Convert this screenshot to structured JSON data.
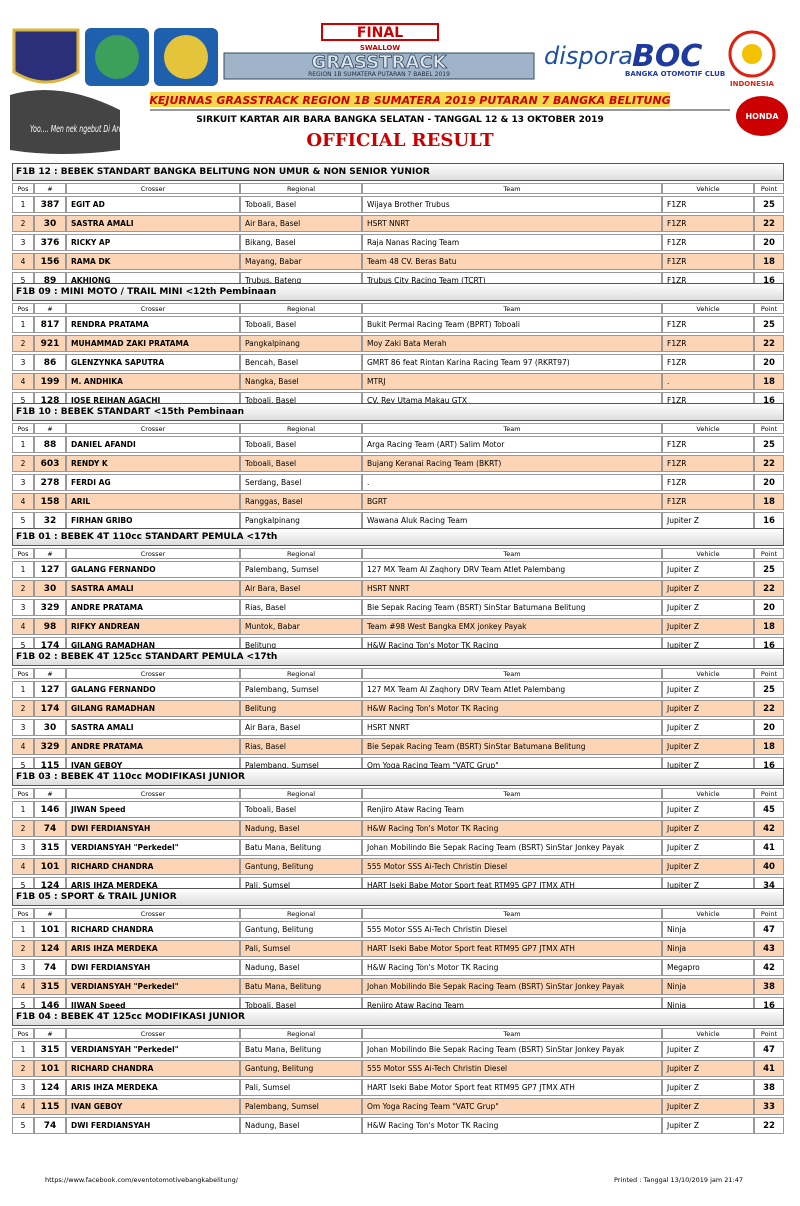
{
  "header": {
    "final": "FINAL",
    "sponsor": "SWALLOW",
    "event_logo": "GRASSTRACK",
    "event_logo_sub": "REGION 1B SUMATERA PUTARAN 7 BABEL 2019",
    "dispora": "dispora",
    "club_logo": "BOC",
    "club_name": "BANGKA OTOMOTIF CLUB",
    "country": "INDONESIA",
    "brand": "HONDA",
    "slogan": "Yoo.... Men nek ngebut Di Arena bae...",
    "title": "KEJURNAS GRASSTRACK REGION 1B SUMATERA 2019 PUTARAN 7 BANGKA BELITUNG",
    "venue": "SIRKUIT KARTAR AIR BARA BANGKA SELATAN  - TANGGAL 12 & 13 OKTOBER 2019",
    "result": "OFFICIAL RESULT"
  },
  "columns": [
    "Pos",
    "#",
    "Crosser",
    "Regional",
    "Team",
    "Vehicle",
    "Point"
  ],
  "sections": [
    {
      "title": "F1B 12  : BEBEK STANDART BANGKA BELITUNG NON UMUR & NON SENIOR YUNIOR",
      "rows": [
        [
          1,
          387,
          "EGIT AD",
          "Toboali, Basel",
          "Wijaya Brother Trubus",
          "F1ZR",
          25
        ],
        [
          2,
          30,
          "SASTRA AMALI",
          "Air Bara, Basel",
          "HSRT NNRT",
          "F1ZR",
          22
        ],
        [
          3,
          376,
          "RICKY AP",
          "Bikang, Basel",
          "Raja Nanas Racing Team",
          "F1ZR",
          20
        ],
        [
          4,
          156,
          "RAMA DK",
          "Mayang, Babar",
          "Team 48 CV. Beras Batu",
          "F1ZR",
          18
        ],
        [
          5,
          89,
          "AKHIONG",
          "Trubus, Bateng",
          "Trubus City Racing Team (TCRT)",
          "F1ZR",
          16
        ]
      ]
    },
    {
      "title": "F1B 09  : MINI MOTO / TRAIL MINI <12th Pembinaan",
      "rows": [
        [
          1,
          817,
          "RENDRA PRATAMA",
          "Toboali, Basel",
          "Bukit Permai Racing Team (BPRT) Toboali",
          "F1ZR",
          25
        ],
        [
          2,
          921,
          "MUHAMMAD ZAKI PRATAMA",
          "Pangkalpinang",
          "Moy Zaki Bata Merah",
          "F1ZR",
          22
        ],
        [
          3,
          86,
          "GLENZYNKA SAPUTRA",
          "Bencah, Basel",
          "GMRT 86 feat Rintan Karina Racing Team 97 (RKRT97)",
          "F1ZR",
          20
        ],
        [
          4,
          199,
          "M. ANDHIKA",
          "Nangka, Basel",
          "MTRJ",
          ".",
          18
        ],
        [
          5,
          128,
          "JOSE REIHAN AGACHI",
          "Toboali, Basel",
          "CV. Rey Utama Makau GTX",
          "F1ZR",
          16
        ]
      ]
    },
    {
      "title": "F1B 10  : BEBEK STANDART <15th Pembinaan",
      "rows": [
        [
          1,
          88,
          "DANIEL AFANDI",
          "Toboali, Basel",
          "Arga Racing Team (ART) Salim Motor",
          "F1ZR",
          25
        ],
        [
          2,
          603,
          "RENDY K",
          "Toboali, Basel",
          "Bujang Keranai Racing Team (BKRT)",
          "F1ZR",
          22
        ],
        [
          3,
          278,
          "FERDI AG",
          "Serdang, Basel",
          ".",
          "F1ZR",
          20
        ],
        [
          4,
          158,
          "ARIL",
          "Ranggas, Basel",
          "BGRT",
          "F1ZR",
          18
        ],
        [
          5,
          32,
          "FIRHAN GRIBO",
          "Pangkalpinang",
          "Wawana Aluk Racing Team",
          "Jupiter Z",
          16
        ]
      ]
    },
    {
      "title": "F1B 01  : BEBEK 4T 110cc STANDART PEMULA <17th",
      "rows": [
        [
          1,
          127,
          "GALANG FERNANDO",
          "Palembang, Sumsel",
          "127 MX Team Al Zaqhory DRV Team Atlet Palembang",
          "Jupiter Z",
          25
        ],
        [
          2,
          30,
          "SASTRA AMALI",
          "Air Bara, Basel",
          "HSRT NNRT",
          "Jupiter Z",
          22
        ],
        [
          3,
          329,
          "ANDRE PRATAMA",
          "Rias, Basel",
          "Bie Sepak Racing Team (BSRT) SinStar Batumana Belitung",
          "Jupiter Z",
          20
        ],
        [
          4,
          98,
          "RIFKY ANDREAN",
          "Muntok, Babar",
          "Team #98 West Bangka EMX jonkey Payak",
          "Jupiter Z",
          18
        ],
        [
          5,
          174,
          "GILANG RAMADHAN",
          "Belitung",
          "H&W Racing Ton's Motor TK Racing",
          "Jupiter Z",
          16
        ]
      ]
    },
    {
      "title": "F1B 02  : BEBEK 4T 125cc STANDART PEMULA <17th",
      "rows": [
        [
          1,
          127,
          "GALANG FERNANDO",
          "Palembang, Sumsel",
          "127 MX Team Al Zaqhory DRV Team Atlet Palembang",
          "Jupiter Z",
          25
        ],
        [
          2,
          174,
          "GILANG RAMADHAN",
          "Belitung",
          "H&W Racing Ton's Motor TK Racing",
          "Jupiter Z",
          22
        ],
        [
          3,
          30,
          "SASTRA AMALI",
          "Air Bara, Basel",
          "HSRT NNRT",
          "Jupiter Z",
          20
        ],
        [
          4,
          329,
          "ANDRE PRATAMA",
          "Rias, Basel",
          "Bie Sepak Racing Team (BSRT) SinStar Batumana Belitung",
          "Jupiter Z",
          18
        ],
        [
          5,
          115,
          "IVAN GEBOY",
          "Palembang, Sumsel",
          "Om Yoga Racing Team \"VATC Grup\"",
          "Jupiter Z",
          16
        ]
      ]
    },
    {
      "title": "F1B 03  : BEBEK 4T 110cc MODIFIKASI JUNIOR",
      "rows": [
        [
          1,
          146,
          "JIWAN Speed",
          "Toboali, Basel",
          "Renjiro Ataw Racing Team",
          "Jupiter Z",
          45
        ],
        [
          2,
          74,
          "DWI FERDIANSYAH",
          "Nadung, Basel",
          "H&W Racing Ton's Motor TK Racing",
          "Jupiter Z",
          42
        ],
        [
          3,
          315,
          "VERDIANSYAH \"Perkedel\"",
          "Batu Mana, Belitung",
          "Johan Mobilindo Bie Sepak Racing Team (BSRT) SinStar Jonkey Payak",
          "Jupiter Z",
          41
        ],
        [
          4,
          101,
          "RICHARD CHANDRA",
          "Gantung, Belitung",
          "555 Motor SSS Ai-Tech Christin Diesel",
          "Jupiter Z",
          40
        ],
        [
          5,
          124,
          "ARIS IHZA MERDEKA",
          "Pali, Sumsel",
          "HART Iseki Babe Motor Sport feat RTM95 GP7 JTMX ATH",
          "Jupiter Z",
          34
        ]
      ]
    },
    {
      "title": "F1B 05  : SPORT & TRAIL JUNIOR",
      "rows": [
        [
          1,
          101,
          "RICHARD CHANDRA",
          "Gantung, Belitung",
          "555 Motor SSS Ai-Tech Christin Diesel",
          "Ninja",
          47
        ],
        [
          2,
          124,
          "ARIS IHZA MERDEKA",
          "Pali, Sumsel",
          "HART Iseki Babe Motor Sport feat RTM95 GP7 JTMX ATH",
          "Ninja",
          43
        ],
        [
          3,
          74,
          "DWI FERDIANSYAH",
          "Nadung, Basel",
          "H&W Racing Ton's Motor TK Racing",
          "Megapro",
          42
        ],
        [
          4,
          315,
          "VERDIANSYAH \"Perkedel\"",
          "Batu Mana, Belitung",
          "Johan Mobilindo Bie Sepak Racing Team (BSRT) SinStar Jonkey Payak",
          "Ninja",
          38
        ],
        [
          5,
          146,
          "JIWAN Speed",
          "Toboali, Basel",
          "Renjiro Ataw Racing Team",
          "Ninja",
          16
        ]
      ]
    },
    {
      "title": "F1B 04  : BEBEK 4T 125cc MODIFIKASI JUNIOR",
      "rows": [
        [
          1,
          315,
          "VERDIANSYAH \"Perkedel\"",
          "Batu Mana, Belitung",
          "Johan Mobilindo Bie Sepak Racing Team (BSRT) SinStar Jonkey Payak",
          "Jupiter Z",
          47
        ],
        [
          2,
          101,
          "RICHARD CHANDRA",
          "Gantung, Belitung",
          "555 Motor SSS Ai-Tech Christin Diesel",
          "Jupiter Z",
          41
        ],
        [
          3,
          124,
          "ARIS IHZA MERDEKA",
          "Pali, Sumsel",
          "HART Iseki Babe Motor Sport feat RTM95 GP7 JTMX ATH",
          "Jupiter Z",
          38
        ],
        [
          4,
          115,
          "IVAN GEBOY",
          "Palembang, Sumsel",
          "Om Yoga Racing Team \"VATC Grup\"",
          "Jupiter Z",
          33
        ],
        [
          5,
          74,
          "DWI FERDIANSYAH",
          "Nadung, Basel",
          "H&W Racing Ton's Motor TK Racing",
          "Jupiter Z",
          22
        ]
      ]
    }
  ],
  "footer": {
    "url": "https://www.facebook.com/eventotomotivebangkabelitung/",
    "printed": "Printed : Tanggal 13/10/2019 jam 21:47"
  }
}
